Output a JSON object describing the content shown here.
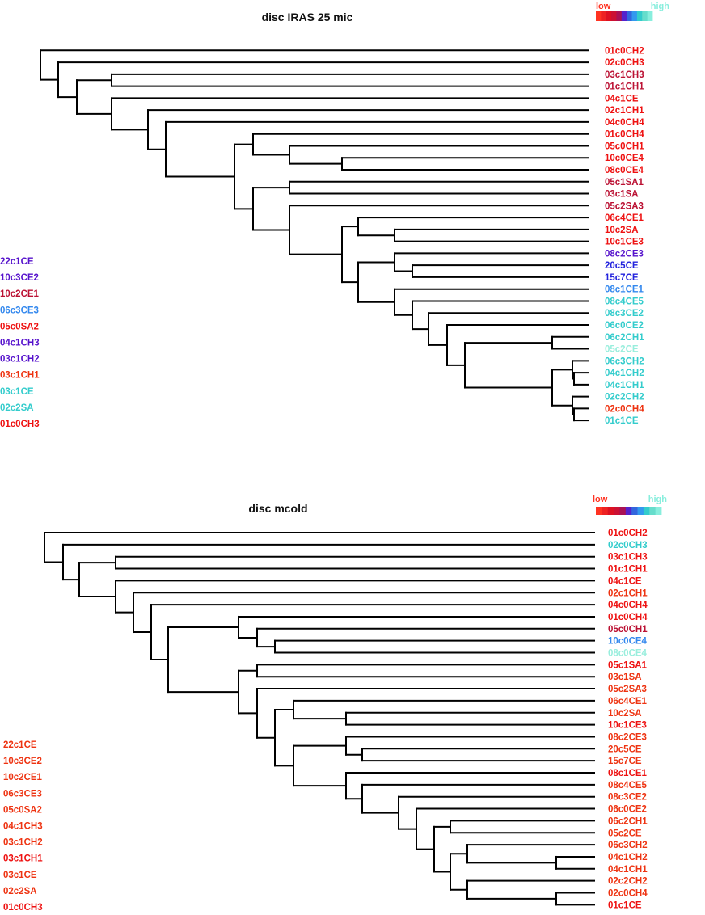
{
  "colors": {
    "low": "#ff3322",
    "high": "#88eedd",
    "red": "#ee1111",
    "crimson": "#bb1133",
    "purple": "#5511cc",
    "royal": "#2222dd",
    "blue": "#3388ee",
    "teal": "#33cccc",
    "pale": "#99eedd",
    "orange": "#ff4411",
    "orangered": "#ee3311"
  },
  "panels": [
    {
      "title": "disc IRAS 25 mic",
      "legend": {
        "low_label": "low",
        "high_label": "high",
        "swatches": [
          "#ff3322",
          "#ee2222",
          "#dd1122",
          "#cc1133",
          "#aa1155",
          "#5522cc",
          "#3366dd",
          "#3399ee",
          "#33cccc",
          "#66ddcc",
          "#88eedd"
        ]
      },
      "leaves": [
        {
          "label": "01c0CH2",
          "color": "#ee1111"
        },
        {
          "label": "02c0CH3",
          "color": "#ee1111"
        },
        {
          "label": "03c1CH3",
          "color": "#bb1133"
        },
        {
          "label": "01c1CH1",
          "color": "#bb1133"
        },
        {
          "label": "04c1CE",
          "color": "#ee1111"
        },
        {
          "label": "02c1CH1",
          "color": "#ee1111"
        },
        {
          "label": "04c0CH4",
          "color": "#ee1111"
        },
        {
          "label": "01c0CH4",
          "color": "#ee1111"
        },
        {
          "label": "05c0CH1",
          "color": "#ee1111"
        },
        {
          "label": "10c0CE4",
          "color": "#ee1111"
        },
        {
          "label": "08c0CE4",
          "color": "#ee1111"
        },
        {
          "label": "05c1SA1",
          "color": "#bb1133"
        },
        {
          "label": "03c1SA",
          "color": "#bb1133"
        },
        {
          "label": "05c2SA3",
          "color": "#bb1133"
        },
        {
          "label": "06c4CE1",
          "color": "#ee1111"
        },
        {
          "label": "10c2SA",
          "color": "#ee1111"
        },
        {
          "label": "10c1CE3",
          "color": "#ee1111"
        },
        {
          "label": "08c2CE3",
          "color": "#5511cc"
        },
        {
          "label": "20c5CE",
          "color": "#2222dd"
        },
        {
          "label": "15c7CE",
          "color": "#2222dd"
        },
        {
          "label": "08c1CE1",
          "color": "#3388ee"
        },
        {
          "label": "08c4CE5",
          "color": "#33cccc"
        },
        {
          "label": "08c3CE2",
          "color": "#33cccc"
        },
        {
          "label": "06c0CE2",
          "color": "#33cccc"
        },
        {
          "label": "06c2CH1",
          "color": "#33cccc"
        },
        {
          "label": "05c2CE",
          "color": "#99eedd"
        },
        {
          "label": "06c3CH2",
          "color": "#33cccc"
        },
        {
          "label": "04c1CH2",
          "color": "#33cccc"
        },
        {
          "label": "04c1CH1",
          "color": "#33cccc"
        },
        {
          "label": "02c2CH2",
          "color": "#33cccc"
        },
        {
          "label": "02c0CH4",
          "color": "#ee3311"
        },
        {
          "label": "01c1CE",
          "color": "#33cccc"
        }
      ],
      "outgroup": [
        {
          "label": "22c1CE",
          "color": "#5511cc"
        },
        {
          "label": "10c3CE2",
          "color": "#5511cc"
        },
        {
          "label": "10c2CE1",
          "color": "#bb1133"
        },
        {
          "label": "06c3CE3",
          "color": "#3388ee"
        },
        {
          "label": "05c0SA2",
          "color": "#ee1111"
        },
        {
          "label": "04c1CH3",
          "color": "#5511cc"
        },
        {
          "label": "03c1CH2",
          "color": "#5511cc"
        },
        {
          "label": "03c1CH1",
          "color": "#ee3311"
        },
        {
          "label": "03c1CE",
          "color": "#33cccc"
        },
        {
          "label": "02c2SA",
          "color": "#33cccc"
        },
        {
          "label": "01c0CH3",
          "color": "#ee1111"
        }
      ]
    },
    {
      "title": "disc mcold",
      "legend": {
        "low_label": "low",
        "high_label": "high",
        "swatches": [
          "#ff3322",
          "#ee2222",
          "#dd1122",
          "#cc1133",
          "#aa1155",
          "#5522cc",
          "#3366dd",
          "#3399ee",
          "#33cccc",
          "#66ddcc",
          "#88eedd"
        ]
      },
      "leaves": [
        {
          "label": "01c0CH2",
          "color": "#ee1111"
        },
        {
          "label": "02c0CH3",
          "color": "#33cccc"
        },
        {
          "label": "03c1CH3",
          "color": "#ee1111"
        },
        {
          "label": "01c1CH1",
          "color": "#ee1111"
        },
        {
          "label": "04c1CE",
          "color": "#ee1111"
        },
        {
          "label": "02c1CH1",
          "color": "#ee3311"
        },
        {
          "label": "04c0CH4",
          "color": "#ee1111"
        },
        {
          "label": "01c0CH4",
          "color": "#ee1111"
        },
        {
          "label": "05c0CH1",
          "color": "#bb1133"
        },
        {
          "label": "10c0CE4",
          "color": "#3388ee"
        },
        {
          "label": "08c0CE4",
          "color": "#99eedd"
        },
        {
          "label": "05c1SA1",
          "color": "#ee1111"
        },
        {
          "label": "03c1SA",
          "color": "#ee3311"
        },
        {
          "label": "05c2SA3",
          "color": "#ee3311"
        },
        {
          "label": "06c4CE1",
          "color": "#ee3311"
        },
        {
          "label": "10c2SA",
          "color": "#ee3311"
        },
        {
          "label": "10c1CE3",
          "color": "#ee1111"
        },
        {
          "label": "08c2CE3",
          "color": "#ee3311"
        },
        {
          "label": "20c5CE",
          "color": "#ee3311"
        },
        {
          "label": "15c7CE",
          "color": "#ee3311"
        },
        {
          "label": "08c1CE1",
          "color": "#ee1111"
        },
        {
          "label": "08c4CE5",
          "color": "#ee3311"
        },
        {
          "label": "08c3CE2",
          "color": "#ee3311"
        },
        {
          "label": "06c0CE2",
          "color": "#ee3311"
        },
        {
          "label": "06c2CH1",
          "color": "#ee3311"
        },
        {
          "label": "05c2CE",
          "color": "#ee3311"
        },
        {
          "label": "06c3CH2",
          "color": "#ee3311"
        },
        {
          "label": "04c1CH2",
          "color": "#ee3311"
        },
        {
          "label": "04c1CH1",
          "color": "#ee3311"
        },
        {
          "label": "02c2CH2",
          "color": "#ee3311"
        },
        {
          "label": "02c0CH4",
          "color": "#ee3311"
        },
        {
          "label": "01c1CE",
          "color": "#ee1111"
        }
      ],
      "outgroup": [
        {
          "label": "22c1CE",
          "color": "#ee3311"
        },
        {
          "label": "10c3CE2",
          "color": "#ee3311"
        },
        {
          "label": "10c2CE1",
          "color": "#ee3311"
        },
        {
          "label": "06c3CE3",
          "color": "#ee3311"
        },
        {
          "label": "05c0SA2",
          "color": "#ee3311"
        },
        {
          "label": "04c1CH3",
          "color": "#ee3311"
        },
        {
          "label": "03c1CH2",
          "color": "#ee3311"
        },
        {
          "label": "03c1CH1",
          "color": "#ee1111"
        },
        {
          "label": "03c1CE",
          "color": "#ee3311"
        },
        {
          "label": "02c2SA",
          "color": "#ee3311"
        },
        {
          "label": "01c0CH3",
          "color": "#ee1111"
        }
      ]
    }
  ]
}
